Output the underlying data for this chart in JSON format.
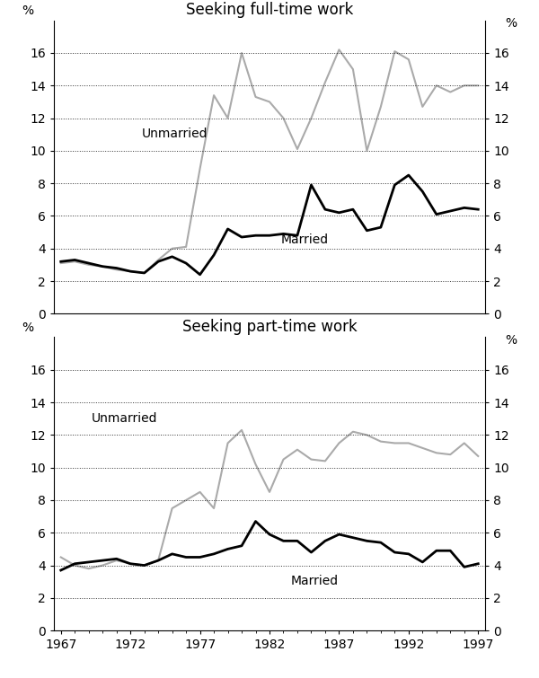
{
  "years": [
    1967,
    1968,
    1969,
    1970,
    1971,
    1972,
    1973,
    1974,
    1975,
    1976,
    1977,
    1978,
    1979,
    1980,
    1981,
    1982,
    1983,
    1984,
    1985,
    1986,
    1987,
    1988,
    1989,
    1990,
    1991,
    1992,
    1993,
    1994,
    1995,
    1996,
    1997
  ],
  "fulltime_married": [
    3.2,
    3.3,
    3.1,
    2.9,
    2.8,
    2.6,
    2.5,
    3.2,
    3.5,
    3.1,
    2.4,
    3.6,
    5.2,
    4.7,
    4.8,
    4.8,
    4.9,
    4.8,
    7.9,
    6.4,
    6.2,
    6.4,
    5.1,
    5.3,
    7.9,
    8.5,
    7.5,
    6.1,
    6.3,
    6.5,
    6.4
  ],
  "fulltime_unmarried": [
    3.1,
    3.2,
    3.0,
    2.9,
    2.7,
    2.6,
    2.5,
    3.3,
    4.0,
    4.1,
    8.9,
    13.4,
    12.0,
    16.0,
    13.3,
    13.0,
    12.0,
    10.1,
    12.0,
    14.2,
    16.2,
    15.0,
    10.0,
    12.7,
    16.1,
    15.6,
    12.7,
    14.0,
    13.6,
    14.0,
    14.0
  ],
  "parttime_married": [
    3.7,
    4.1,
    4.2,
    4.3,
    4.4,
    4.1,
    4.0,
    4.3,
    4.7,
    4.5,
    4.5,
    4.7,
    5.0,
    5.2,
    6.7,
    5.9,
    5.5,
    5.5,
    4.8,
    5.5,
    5.9,
    5.7,
    5.5,
    5.4,
    4.8,
    4.7,
    4.2,
    4.9,
    4.9,
    3.9,
    4.1
  ],
  "parttime_unmarried": [
    4.5,
    4.0,
    3.8,
    4.0,
    4.3,
    4.1,
    4.0,
    4.3,
    7.5,
    8.0,
    8.5,
    7.5,
    11.5,
    12.3,
    10.2,
    8.5,
    10.5,
    11.1,
    10.5,
    10.4,
    11.5,
    12.2,
    12.0,
    11.6,
    11.5,
    11.5,
    11.2,
    10.9,
    10.8,
    11.5,
    10.7
  ],
  "fulltime_title": "Seeking full-time work",
  "parttime_title": "Seeking part-time work",
  "label_married_ft": "Married",
  "label_unmarried_ft": "Unmarried",
  "label_married_pt": "Married",
  "label_unmarried_pt": "Unmarried",
  "color_married": "#000000",
  "color_unmarried": "#aaaaaa",
  "ylim": [
    0,
    18
  ],
  "yticks": [
    0,
    2,
    4,
    6,
    8,
    10,
    12,
    14,
    16
  ],
  "xticks": [
    1967,
    1972,
    1977,
    1982,
    1987,
    1992,
    1997
  ],
  "title_fontsize": 12,
  "label_fontsize": 10,
  "tick_fontsize": 10
}
